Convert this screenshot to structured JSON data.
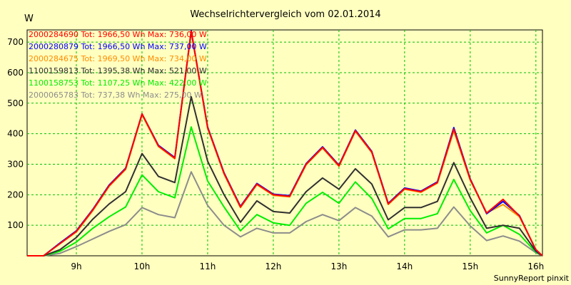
{
  "chart_data": {
    "type": "line",
    "title": "Wechselrichtervergleich vom 02.01.2014",
    "y_unit": "W",
    "ylim": [
      0,
      740
    ],
    "y_ticks": [
      100,
      200,
      300,
      400,
      500,
      600,
      700
    ],
    "y_tick_labels": [
      "100",
      "200",
      "300",
      "400",
      "500",
      "600",
      "700"
    ],
    "xlim": [
      8.25,
      16.1
    ],
    "x_ticks": [
      9,
      10,
      11,
      12,
      13,
      14,
      15,
      16
    ],
    "x_tick_labels": [
      "9h",
      "10h",
      "11h",
      "12h",
      "13h",
      "14h",
      "15h",
      "16h"
    ],
    "grid": true,
    "legend_position": "top-left",
    "footer": "SunnyReport pinxit",
    "x": [
      8.25,
      8.5,
      8.75,
      9.0,
      9.25,
      9.5,
      9.75,
      10.0,
      10.25,
      10.5,
      10.75,
      11.0,
      11.25,
      11.5,
      11.75,
      12.0,
      12.25,
      12.5,
      12.75,
      13.0,
      13.25,
      13.5,
      13.75,
      14.0,
      14.25,
      14.5,
      14.75,
      15.0,
      15.25,
      15.5,
      15.75,
      16.0,
      16.1
    ],
    "series": [
      {
        "label": "2000284690 Tot: 1966,50 Wh Max: 736,00 W",
        "color": "#ff0000",
        "values": [
          0,
          0,
          40,
          80,
          150,
          230,
          285,
          465,
          360,
          320,
          736,
          420,
          270,
          160,
          235,
          200,
          195,
          300,
          355,
          295,
          410,
          340,
          170,
          220,
          210,
          240,
          415,
          250,
          140,
          185,
          130,
          20,
          0
        ]
      },
      {
        "label": "2000280879 Tot: 1966,50 Wh Max: 737,00 W",
        "color": "#0000ff",
        "values": [
          0,
          0,
          42,
          82,
          152,
          232,
          287,
          465,
          362,
          322,
          737,
          422,
          272,
          162,
          237,
          202,
          197,
          302,
          357,
          297,
          412,
          342,
          172,
          222,
          212,
          242,
          420,
          252,
          138,
          178,
          132,
          18,
          0
        ]
      },
      {
        "label": "2000284675 Tot: 1969,50 Wh Max: 734,00 W",
        "color": "#ff8c00",
        "values": [
          0,
          0,
          40,
          78,
          148,
          228,
          283,
          462,
          358,
          318,
          734,
          418,
          268,
          158,
          233,
          198,
          193,
          298,
          353,
          293,
          408,
          338,
          168,
          218,
          208,
          238,
          410,
          248,
          140,
          168,
          128,
          20,
          0
        ]
      },
      {
        "label": "1100159813 Tot: 1395,38 Wh Max: 521,00 W",
        "color": "#303030",
        "values": [
          0,
          0,
          20,
          60,
          120,
          170,
          210,
          335,
          260,
          240,
          521,
          310,
          200,
          110,
          180,
          145,
          140,
          210,
          255,
          218,
          285,
          235,
          118,
          158,
          158,
          178,
          305,
          190,
          90,
          100,
          90,
          15,
          0
        ]
      },
      {
        "label": "1100158753 Tot: 1107,25 Wh Max: 422,00 W",
        "color": "#00ee00",
        "values": [
          0,
          0,
          15,
          45,
          90,
          128,
          160,
          265,
          210,
          190,
          422,
          245,
          160,
          82,
          135,
          108,
          100,
          172,
          208,
          172,
          242,
          188,
          88,
          122,
          122,
          138,
          250,
          148,
          75,
          100,
          70,
          12,
          0
        ]
      },
      {
        "label": "2000065783 Tot: 737,38 Wh Max: 275,00 W",
        "color": "#8c8c8c",
        "values": [
          0,
          0,
          8,
          30,
          55,
          80,
          102,
          158,
          135,
          125,
          275,
          165,
          100,
          62,
          90,
          75,
          75,
          112,
          135,
          115,
          158,
          130,
          62,
          85,
          85,
          90,
          160,
          98,
          50,
          65,
          48,
          10,
          0
        ]
      }
    ]
  }
}
